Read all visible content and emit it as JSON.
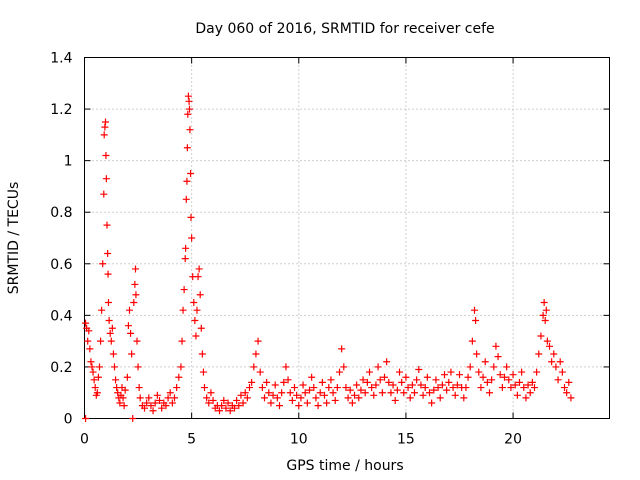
{
  "chart_data": {
    "type": "scatter",
    "title": "Day 060 of 2016, SRMTID for receiver cefe",
    "xlabel": "GPS time / hours",
    "ylabel": "SRMTID / TECUs",
    "xlim": [
      0,
      24.5
    ],
    "ylim": [
      0,
      1.4
    ],
    "xticks": [
      0,
      5,
      10,
      15,
      20
    ],
    "xtick_labels": [
      "0",
      "5",
      "10",
      "15",
      "20"
    ],
    "yticks": [
      0,
      0.2,
      0.4,
      0.6,
      0.8,
      1,
      1.2,
      1.4
    ],
    "ytick_labels": [
      "0",
      "0.2",
      "0.4",
      "0.6",
      "0.8",
      "1",
      "1.2",
      "1.4"
    ],
    "grid": true,
    "marker": "+",
    "series": [
      {
        "name": "SRMTID",
        "color": "#ff0000",
        "points": [
          [
            0.05,
            0.0
          ],
          [
            0.05,
            0.37
          ],
          [
            0.1,
            0.35
          ],
          [
            0.15,
            0.3
          ],
          [
            0.2,
            0.34
          ],
          [
            0.25,
            0.27
          ],
          [
            0.3,
            0.22
          ],
          [
            0.35,
            0.2
          ],
          [
            0.4,
            0.18
          ],
          [
            0.45,
            0.15
          ],
          [
            0.5,
            0.12
          ],
          [
            0.55,
            0.09
          ],
          [
            0.6,
            0.1
          ],
          [
            0.65,
            0.16
          ],
          [
            0.7,
            0.2
          ],
          [
            0.75,
            0.3
          ],
          [
            0.8,
            0.42
          ],
          [
            0.85,
            0.6
          ],
          [
            0.9,
            0.87
          ],
          [
            0.92,
            1.1
          ],
          [
            0.95,
            1.13
          ],
          [
            0.98,
            1.15
          ],
          [
            1.0,
            1.02
          ],
          [
            1.02,
            0.93
          ],
          [
            1.05,
            0.75
          ],
          [
            1.08,
            0.64
          ],
          [
            1.1,
            0.56
          ],
          [
            1.12,
            0.45
          ],
          [
            1.15,
            0.38
          ],
          [
            1.2,
            0.33
          ],
          [
            1.25,
            0.3
          ],
          [
            1.3,
            0.35
          ],
          [
            1.35,
            0.25
          ],
          [
            1.4,
            0.2
          ],
          [
            1.45,
            0.15
          ],
          [
            1.5,
            0.12
          ],
          [
            1.55,
            0.1
          ],
          [
            1.6,
            0.08
          ],
          [
            1.65,
            0.06
          ],
          [
            1.7,
            0.09
          ],
          [
            1.75,
            0.12
          ],
          [
            1.8,
            0.08
          ],
          [
            1.85,
            0.05
          ],
          [
            1.9,
            0.11
          ],
          [
            2.0,
            0.16
          ],
          [
            2.05,
            0.36
          ],
          [
            2.1,
            0.42
          ],
          [
            2.15,
            0.33
          ],
          [
            2.2,
            0.25
          ],
          [
            2.25,
            0.0
          ],
          [
            2.3,
            0.45
          ],
          [
            2.35,
            0.52
          ],
          [
            2.38,
            0.58
          ],
          [
            2.4,
            0.48
          ],
          [
            2.45,
            0.3
          ],
          [
            2.5,
            0.2
          ],
          [
            2.55,
            0.12
          ],
          [
            2.6,
            0.08
          ],
          [
            2.7,
            0.05
          ],
          [
            2.8,
            0.04
          ],
          [
            2.9,
            0.06
          ],
          [
            3.0,
            0.08
          ],
          [
            3.1,
            0.05
          ],
          [
            3.2,
            0.03
          ],
          [
            3.3,
            0.06
          ],
          [
            3.4,
            0.09
          ],
          [
            3.5,
            0.07
          ],
          [
            3.6,
            0.04
          ],
          [
            3.7,
            0.06
          ],
          [
            3.8,
            0.05
          ],
          [
            3.9,
            0.08
          ],
          [
            4.0,
            0.1
          ],
          [
            4.1,
            0.06
          ],
          [
            4.2,
            0.08
          ],
          [
            4.3,
            0.12
          ],
          [
            4.4,
            0.16
          ],
          [
            4.5,
            0.2
          ],
          [
            4.55,
            0.3
          ],
          [
            4.6,
            0.42
          ],
          [
            4.65,
            0.5
          ],
          [
            4.7,
            0.62
          ],
          [
            4.72,
            0.66
          ],
          [
            4.75,
            0.85
          ],
          [
            4.78,
            0.92
          ],
          [
            4.8,
            1.05
          ],
          [
            4.82,
            1.18
          ],
          [
            4.85,
            1.25
          ],
          [
            4.88,
            1.23
          ],
          [
            4.9,
            1.2
          ],
          [
            4.92,
            1.12
          ],
          [
            4.95,
            0.95
          ],
          [
            4.97,
            0.78
          ],
          [
            5.0,
            0.7
          ],
          [
            5.05,
            0.55
          ],
          [
            5.1,
            0.45
          ],
          [
            5.15,
            0.38
          ],
          [
            5.2,
            0.32
          ],
          [
            5.25,
            0.42
          ],
          [
            5.3,
            0.55
          ],
          [
            5.35,
            0.58
          ],
          [
            5.4,
            0.48
          ],
          [
            5.45,
            0.35
          ],
          [
            5.5,
            0.25
          ],
          [
            5.55,
            0.18
          ],
          [
            5.6,
            0.12
          ],
          [
            5.7,
            0.08
          ],
          [
            5.8,
            0.06
          ],
          [
            5.9,
            0.1
          ],
          [
            6.0,
            0.07
          ],
          [
            6.1,
            0.04
          ],
          [
            6.2,
            0.05
          ],
          [
            6.3,
            0.03
          ],
          [
            6.4,
            0.05
          ],
          [
            6.5,
            0.07
          ],
          [
            6.6,
            0.04
          ],
          [
            6.7,
            0.06
          ],
          [
            6.8,
            0.03
          ],
          [
            6.9,
            0.05
          ],
          [
            7.0,
            0.04
          ],
          [
            7.1,
            0.07
          ],
          [
            7.2,
            0.05
          ],
          [
            7.3,
            0.09
          ],
          [
            7.4,
            0.06
          ],
          [
            7.5,
            0.1
          ],
          [
            7.6,
            0.08
          ],
          [
            7.7,
            0.12
          ],
          [
            7.8,
            0.14
          ],
          [
            7.9,
            0.2
          ],
          [
            8.0,
            0.25
          ],
          [
            8.1,
            0.3
          ],
          [
            8.2,
            0.18
          ],
          [
            8.3,
            0.12
          ],
          [
            8.4,
            0.08
          ],
          [
            8.5,
            0.14
          ],
          [
            8.6,
            0.1
          ],
          [
            8.7,
            0.06
          ],
          [
            8.8,
            0.09
          ],
          [
            8.9,
            0.13
          ],
          [
            9.0,
            0.08
          ],
          [
            9.1,
            0.05
          ],
          [
            9.2,
            0.1
          ],
          [
            9.3,
            0.14
          ],
          [
            9.4,
            0.2
          ],
          [
            9.5,
            0.15
          ],
          [
            9.6,
            0.1
          ],
          [
            9.7,
            0.07
          ],
          [
            9.8,
            0.12
          ],
          [
            9.9,
            0.09
          ],
          [
            10.0,
            0.05
          ],
          [
            10.1,
            0.08
          ],
          [
            10.2,
            0.13
          ],
          [
            10.3,
            0.1
          ],
          [
            10.4,
            0.06
          ],
          [
            10.5,
            0.11
          ],
          [
            10.6,
            0.16
          ],
          [
            10.7,
            0.12
          ],
          [
            10.8,
            0.08
          ],
          [
            10.9,
            0.05
          ],
          [
            11.0,
            0.1
          ],
          [
            11.1,
            0.14
          ],
          [
            11.2,
            0.09
          ],
          [
            11.3,
            0.06
          ],
          [
            11.4,
            0.12
          ],
          [
            11.5,
            0.15
          ],
          [
            11.6,
            0.1
          ],
          [
            11.7,
            0.07
          ],
          [
            11.8,
            0.12
          ],
          [
            11.9,
            0.18
          ],
          [
            12.0,
            0.27
          ],
          [
            12.1,
            0.2
          ],
          [
            12.2,
            0.12
          ],
          [
            12.3,
            0.08
          ],
          [
            12.4,
            0.11
          ],
          [
            12.5,
            0.06
          ],
          [
            12.6,
            0.09
          ],
          [
            12.7,
            0.13
          ],
          [
            12.8,
            0.08
          ],
          [
            12.9,
            0.11
          ],
          [
            13.0,
            0.15
          ],
          [
            13.1,
            0.1
          ],
          [
            13.2,
            0.14
          ],
          [
            13.3,
            0.18
          ],
          [
            13.4,
            0.12
          ],
          [
            13.5,
            0.09
          ],
          [
            13.6,
            0.13
          ],
          [
            13.7,
            0.2
          ],
          [
            13.8,
            0.15
          ],
          [
            13.9,
            0.1
          ],
          [
            14.0,
            0.16
          ],
          [
            14.1,
            0.22
          ],
          [
            14.2,
            0.14
          ],
          [
            14.3,
            0.1
          ],
          [
            14.4,
            0.13
          ],
          [
            14.5,
            0.07
          ],
          [
            14.6,
            0.11
          ],
          [
            14.7,
            0.18
          ],
          [
            14.8,
            0.14
          ],
          [
            14.9,
            0.1
          ],
          [
            15.0,
            0.16
          ],
          [
            15.1,
            0.12
          ],
          [
            15.2,
            0.08
          ],
          [
            15.3,
            0.13
          ],
          [
            15.4,
            0.1
          ],
          [
            15.5,
            0.15
          ],
          [
            15.6,
            0.19
          ],
          [
            15.7,
            0.13
          ],
          [
            15.8,
            0.09
          ],
          [
            15.9,
            0.12
          ],
          [
            16.0,
            0.16
          ],
          [
            16.1,
            0.1
          ],
          [
            16.2,
            0.06
          ],
          [
            16.3,
            0.11
          ],
          [
            16.4,
            0.15
          ],
          [
            16.5,
            0.12
          ],
          [
            16.6,
            0.08
          ],
          [
            16.7,
            0.13
          ],
          [
            16.8,
            0.17
          ],
          [
            16.9,
            0.11
          ],
          [
            17.0,
            0.14
          ],
          [
            17.1,
            0.18
          ],
          [
            17.2,
            0.12
          ],
          [
            17.3,
            0.09
          ],
          [
            17.4,
            0.13
          ],
          [
            17.5,
            0.17
          ],
          [
            17.6,
            0.12
          ],
          [
            17.7,
            0.08
          ],
          [
            17.8,
            0.12
          ],
          [
            17.9,
            0.16
          ],
          [
            18.0,
            0.2
          ],
          [
            18.1,
            0.3
          ],
          [
            18.2,
            0.42
          ],
          [
            18.25,
            0.38
          ],
          [
            18.3,
            0.25
          ],
          [
            18.4,
            0.18
          ],
          [
            18.5,
            0.12
          ],
          [
            18.6,
            0.16
          ],
          [
            18.7,
            0.22
          ],
          [
            18.8,
            0.14
          ],
          [
            18.9,
            0.1
          ],
          [
            19.0,
            0.15
          ],
          [
            19.1,
            0.2
          ],
          [
            19.2,
            0.28
          ],
          [
            19.3,
            0.24
          ],
          [
            19.4,
            0.17
          ],
          [
            19.5,
            0.12
          ],
          [
            19.6,
            0.16
          ],
          [
            19.7,
            0.2
          ],
          [
            19.8,
            0.15
          ],
          [
            19.9,
            0.12
          ],
          [
            20.0,
            0.17
          ],
          [
            20.1,
            0.13
          ],
          [
            20.2,
            0.09
          ],
          [
            20.3,
            0.14
          ],
          [
            20.4,
            0.18
          ],
          [
            20.5,
            0.12
          ],
          [
            20.6,
            0.08
          ],
          [
            20.7,
            0.13
          ],
          [
            20.8,
            0.1
          ],
          [
            20.9,
            0.14
          ],
          [
            21.0,
            0.12
          ],
          [
            21.1,
            0.18
          ],
          [
            21.2,
            0.25
          ],
          [
            21.3,
            0.32
          ],
          [
            21.4,
            0.4
          ],
          [
            21.45,
            0.45
          ],
          [
            21.5,
            0.38
          ],
          [
            21.55,
            0.42
          ],
          [
            21.6,
            0.3
          ],
          [
            21.7,
            0.28
          ],
          [
            21.8,
            0.22
          ],
          [
            21.9,
            0.25
          ],
          [
            22.0,
            0.2
          ],
          [
            22.1,
            0.15
          ],
          [
            22.2,
            0.22
          ],
          [
            22.3,
            0.18
          ],
          [
            22.4,
            0.12
          ],
          [
            22.5,
            0.1
          ],
          [
            22.6,
            0.14
          ],
          [
            22.7,
            0.08
          ]
        ]
      }
    ]
  }
}
